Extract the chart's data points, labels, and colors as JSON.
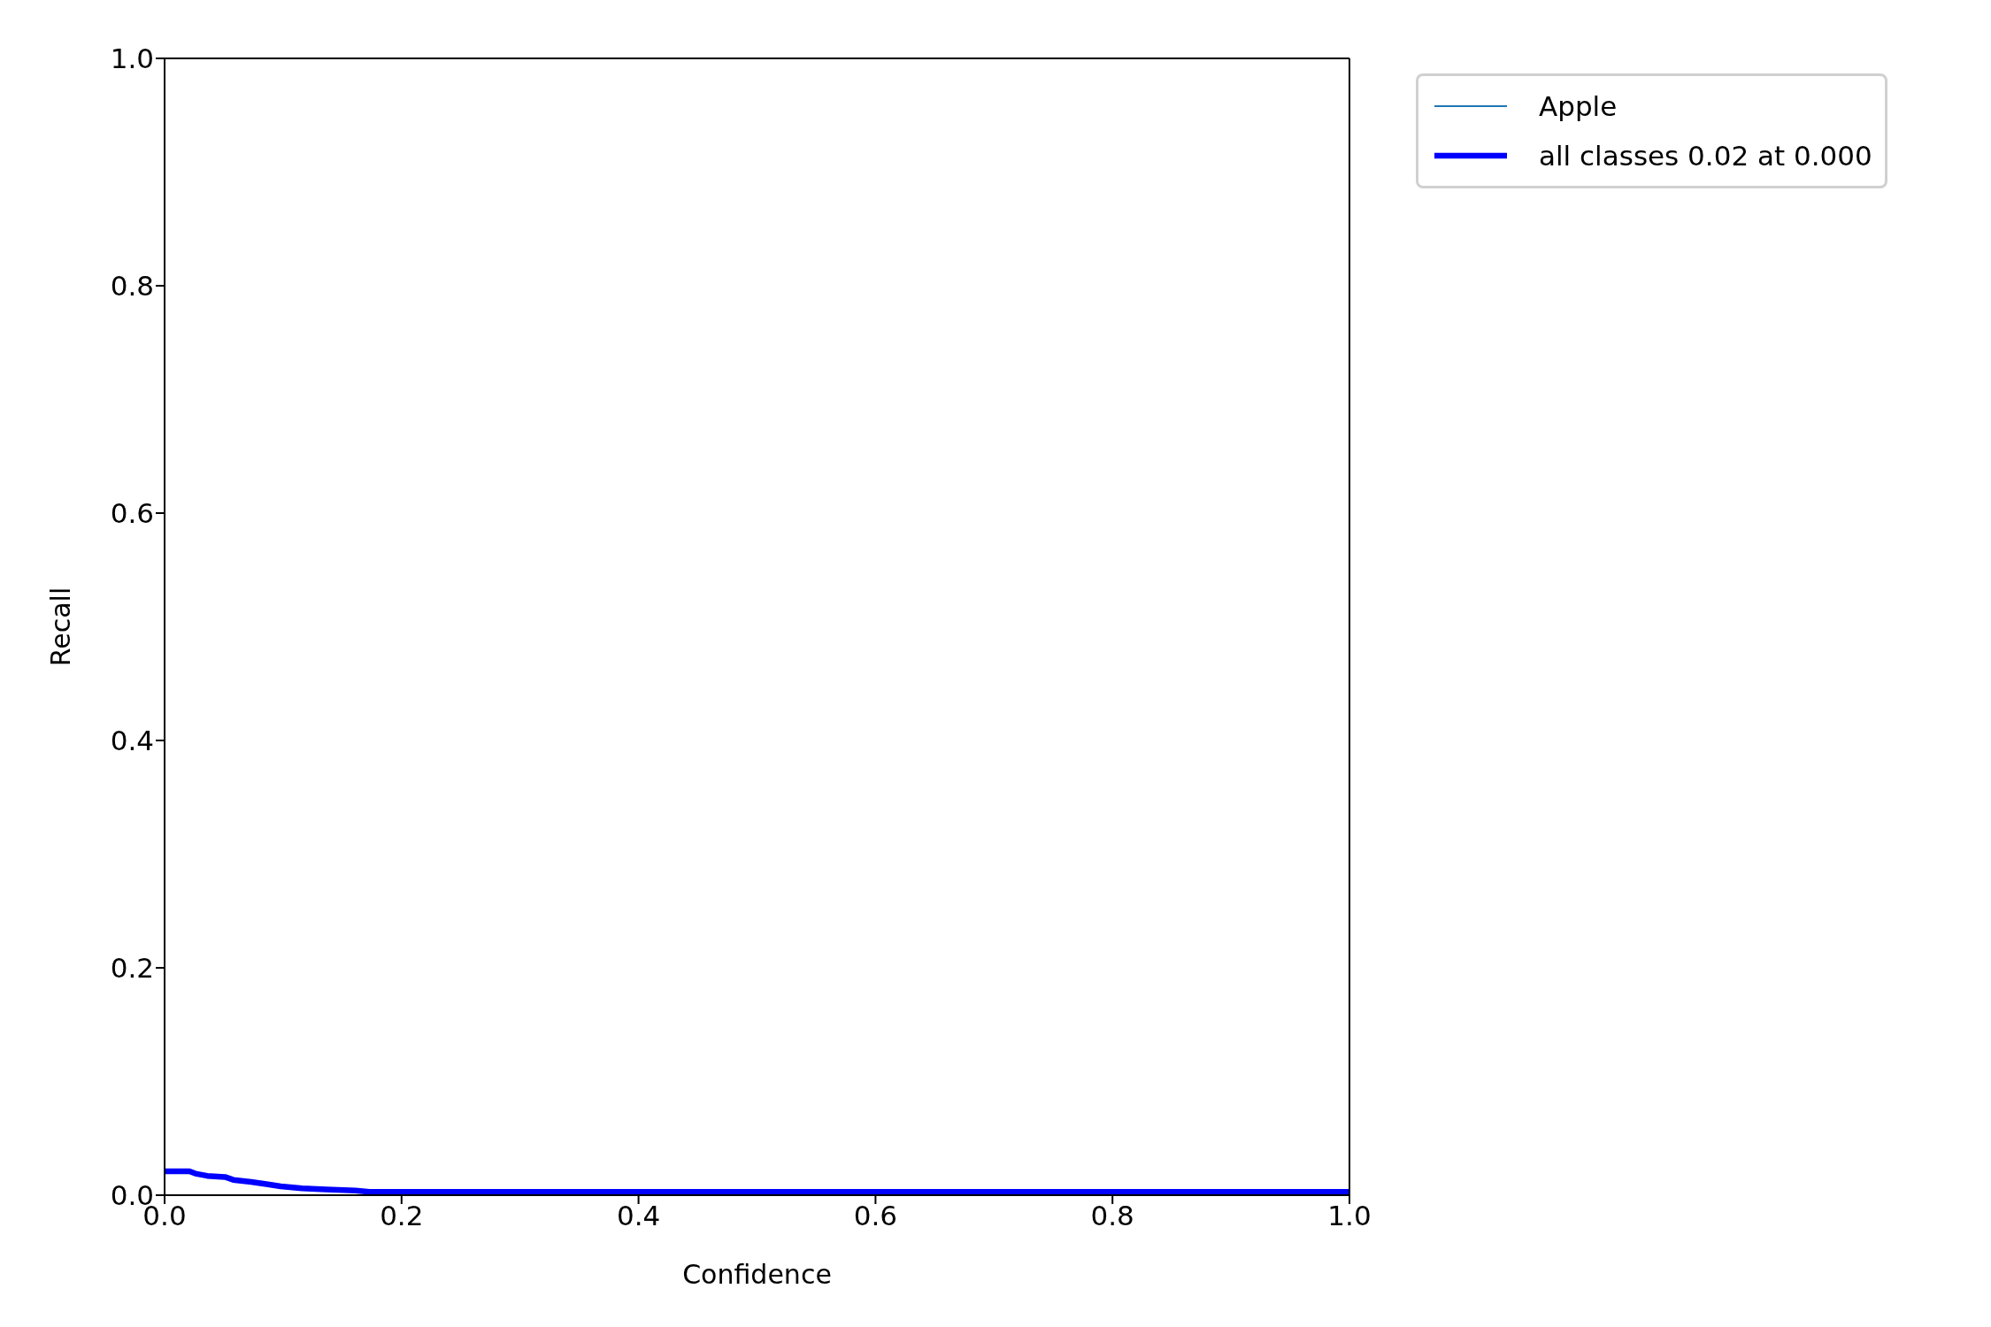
{
  "chart_data": {
    "type": "line",
    "xlabel": "Confidence",
    "ylabel": "Recall",
    "x": [
      0.0,
      0.021,
      0.026,
      0.036,
      0.051,
      0.058,
      0.073,
      0.086,
      0.098,
      0.116,
      0.136,
      0.161,
      0.173,
      0.3,
      0.5,
      0.7,
      0.9,
      1.0
    ],
    "series": [
      {
        "name": "Apple",
        "color": "#1f77b4",
        "values": [
          null,
          null,
          null,
          null,
          null,
          null,
          null,
          null,
          null,
          null,
          null,
          null,
          null,
          null,
          null,
          null,
          null,
          null
        ]
      },
      {
        "name": "all classes 0.02 at 0.000",
        "color": "#0000ff",
        "values": [
          0.021,
          0.021,
          0.019,
          0.017,
          0.016,
          0.0135,
          0.0117,
          0.0098,
          0.0078,
          0.006,
          0.005,
          0.004,
          0.003,
          0.003,
          0.003,
          0.003,
          0.003,
          0.003
        ]
      }
    ],
    "xlim": [
      0,
      1
    ],
    "ylim": [
      0,
      1
    ],
    "xticks": [
      {
        "value": 0,
        "label": "0.0"
      },
      {
        "value": 0.2,
        "label": "0.2"
      },
      {
        "value": 0.4,
        "label": "0.4"
      },
      {
        "value": 0.6,
        "label": "0.6"
      },
      {
        "value": 0.8,
        "label": "0.8"
      },
      {
        "value": 1,
        "label": "1.0"
      }
    ],
    "yticks": [
      {
        "value": 0,
        "label": "0.0"
      },
      {
        "value": 0.2,
        "label": "0.2"
      },
      {
        "value": 0.4,
        "label": "0.4"
      },
      {
        "value": 0.6,
        "label": "0.6"
      },
      {
        "value": 0.8,
        "label": "0.8"
      },
      {
        "value": 1,
        "label": "1.0"
      }
    ],
    "grid": false,
    "legend": "top right",
    "marker": "none",
    "line_style": "solid"
  }
}
